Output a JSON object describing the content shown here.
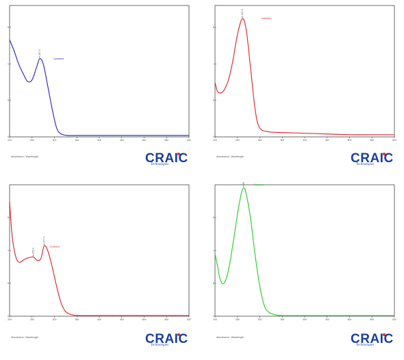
{
  "brand": {
    "logo_text": "CRAIC",
    "logo_subtitle": "Technologies",
    "accent_color": "#1a3f9e",
    "dot_color": "#e03020"
  },
  "footer_label": "Absorbance / Wavelength",
  "chart_data": [
    {
      "type": "line",
      "series_label": "Cytosine",
      "color": "#3030d0",
      "grid": false,
      "xlim": [
        200,
        600
      ],
      "ylim": [
        0,
        1.8
      ],
      "x_ticks": [
        "200",
        "250",
        "300",
        "350",
        "400",
        "450",
        "500",
        "550",
        "600"
      ],
      "y_ticks": [
        "0",
        ".5",
        "1",
        "1.5"
      ],
      "peaks": [
        {
          "x": 267,
          "y": 1.07,
          "label": "267.0"
        }
      ],
      "x": [
        200,
        210,
        220,
        230,
        240,
        250,
        260,
        267,
        275,
        285,
        295,
        305,
        315,
        330,
        350,
        400,
        450,
        500,
        550,
        600
      ],
      "y": [
        1.33,
        1.18,
        1.0,
        0.87,
        0.76,
        0.78,
        0.95,
        1.07,
        1.0,
        0.7,
        0.38,
        0.12,
        0.04,
        0.02,
        0.02,
        0.02,
        0.02,
        0.02,
        0.02,
        0.02
      ]
    },
    {
      "type": "line",
      "series_label": "Adenine",
      "color": "#e03030",
      "grid": false,
      "xlim": [
        200,
        600
      ],
      "ylim": [
        0,
        1.8
      ],
      "x_ticks": [
        "200",
        "250",
        "300",
        "350",
        "400",
        "450",
        "500",
        "550",
        "600"
      ],
      "y_ticks": [
        "0",
        ".5",
        "1",
        "1.5"
      ],
      "peaks": [
        {
          "x": 261,
          "y": 1.62,
          "label": "261.0"
        }
      ],
      "x": [
        200,
        205,
        212,
        220,
        230,
        240,
        250,
        261,
        270,
        280,
        290,
        300,
        320,
        350,
        400,
        450,
        500,
        550,
        600
      ],
      "y": [
        0.75,
        0.63,
        0.6,
        0.64,
        0.78,
        1.05,
        1.4,
        1.62,
        1.45,
        0.9,
        0.35,
        0.12,
        0.07,
        0.06,
        0.05,
        0.04,
        0.03,
        0.03,
        0.03
      ]
    },
    {
      "type": "line",
      "series_label": "Guanine",
      "color": "#e03030",
      "grid": false,
      "xlim": [
        200,
        600
      ],
      "ylim": [
        0,
        2.0
      ],
      "x_ticks": [
        "200",
        "250",
        "300",
        "350",
        "400",
        "450",
        "500",
        "550",
        "600"
      ],
      "y_ticks": [
        "0",
        ".5",
        "1",
        "1.5"
      ],
      "peaks": [
        {
          "x": 253,
          "y": 0.9,
          "label": "253.0"
        },
        {
          "x": 277,
          "y": 1.07,
          "label": "277.0"
        }
      ],
      "x": [
        200,
        206,
        214,
        222,
        232,
        242,
        253,
        262,
        270,
        277,
        285,
        295,
        305,
        315,
        325,
        340,
        360,
        400,
        450,
        500,
        550,
        600
      ],
      "y": [
        1.75,
        1.2,
        0.9,
        0.82,
        0.86,
        0.89,
        0.9,
        0.85,
        0.88,
        1.07,
        1.0,
        0.75,
        0.45,
        0.2,
        0.07,
        0.02,
        0.01,
        0.01,
        0.01,
        0.01,
        0.01,
        0.01
      ]
    },
    {
      "type": "line",
      "series_label": "Thymine",
      "color": "#30d030",
      "grid": false,
      "xlim": [
        200,
        600
      ],
      "ylim": [
        0,
        2.0
      ],
      "x_ticks": [
        "200",
        "250",
        "300",
        "350",
        "400",
        "450",
        "500",
        "550",
        "600"
      ],
      "y_ticks": [
        "0",
        ".5",
        "1",
        "1.5"
      ],
      "peaks": [
        {
          "x": 264,
          "y": 1.95,
          "label": "264.0"
        }
      ],
      "x": [
        200,
        206,
        212,
        220,
        230,
        240,
        250,
        258,
        264,
        270,
        280,
        290,
        300,
        310,
        320,
        335,
        350,
        400,
        450,
        500,
        550,
        600
      ],
      "y": [
        0.95,
        0.75,
        0.55,
        0.5,
        0.7,
        1.1,
        1.55,
        1.85,
        1.95,
        1.85,
        1.45,
        0.9,
        0.45,
        0.16,
        0.06,
        0.02,
        0.01,
        0.01,
        0.01,
        0.01,
        0.01,
        0.01
      ]
    }
  ]
}
